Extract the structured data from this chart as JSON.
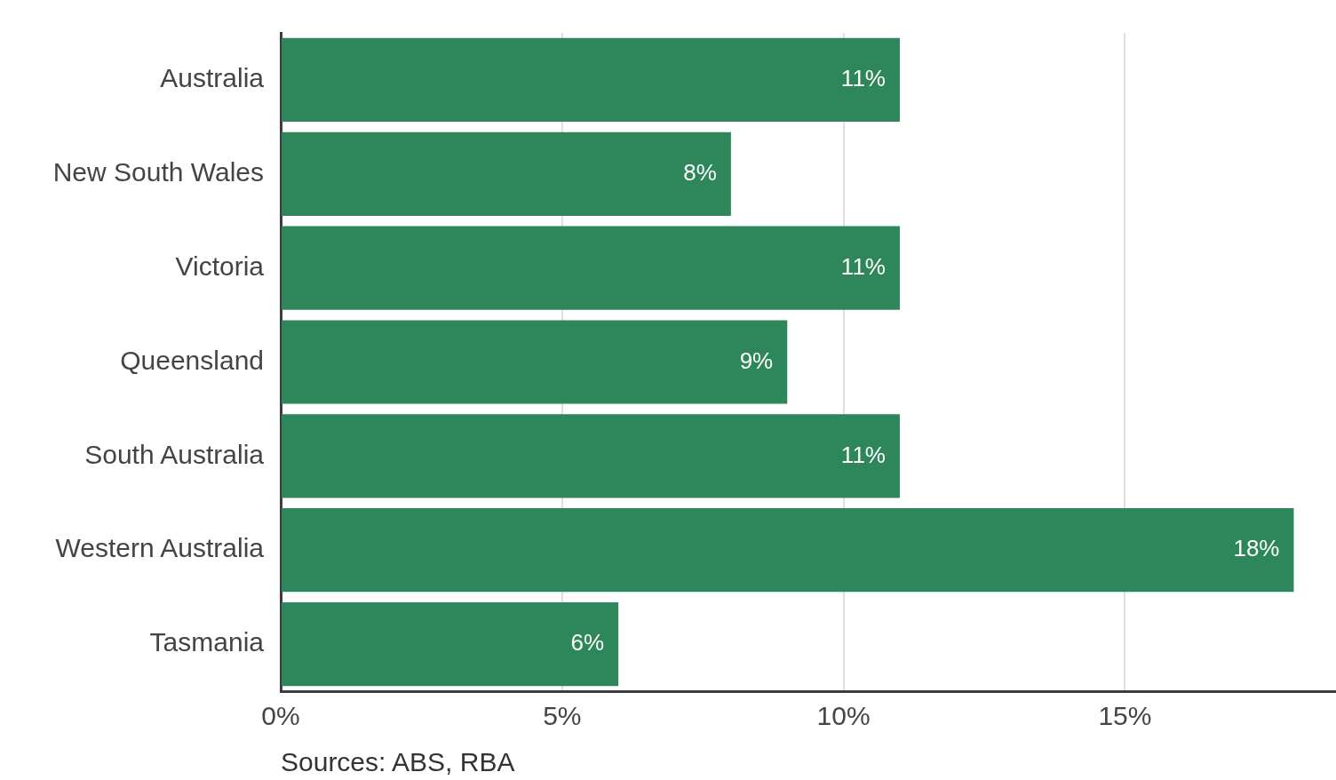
{
  "chart_data": {
    "type": "bar",
    "orientation": "horizontal",
    "categories": [
      "Australia",
      "New South Wales",
      "Victoria",
      "Queensland",
      "South Australia",
      "Western Australia",
      "Tasmania"
    ],
    "values": [
      11,
      8,
      11,
      9,
      11,
      18,
      6
    ],
    "value_labels": [
      "11%",
      "8%",
      "11%",
      "9%",
      "11%",
      "18%",
      "6%"
    ],
    "color": "#2e875a",
    "xlim": [
      0,
      18.75
    ],
    "xticks": [
      {
        "value": 0,
        "label": "0%"
      },
      {
        "value": 5,
        "label": "5%"
      },
      {
        "value": 10,
        "label": "10%"
      },
      {
        "value": 15,
        "label": "15%"
      }
    ],
    "grid": "x",
    "legend": false,
    "annotations": [
      "Sources: ABS, RBA"
    ]
  }
}
